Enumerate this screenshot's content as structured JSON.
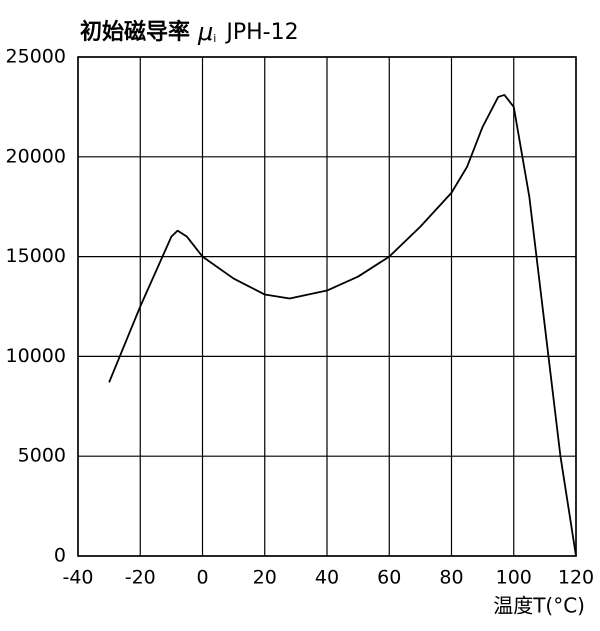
{
  "chart_data": {
    "type": "line",
    "title": "初始磁导率",
    "symbol": "μ",
    "symbol_subscript": "i",
    "subtitle": "JPH-12",
    "x_label": "温度T(°C)",
    "x": [
      -30,
      -20,
      -10,
      -8,
      -5,
      0,
      10,
      20,
      28,
      40,
      50,
      60,
      70,
      80,
      85,
      90,
      95,
      97,
      100,
      105,
      110,
      115,
      120
    ],
    "series": [
      {
        "color": "#000000",
        "values": [
          8700,
          12500,
          16000,
          16300,
          16000,
          15000,
          13900,
          13100,
          12900,
          13300,
          14000,
          15000,
          16500,
          18200,
          19500,
          21500,
          23000,
          23100,
          22500,
          18000,
          11500,
          5000,
          0
        ]
      }
    ],
    "xlim": [
      -40,
      120
    ],
    "xticks": [
      -40,
      -20,
      0,
      20,
      40,
      60,
      80,
      100,
      120
    ],
    "ylim": [
      0,
      25000
    ],
    "yticks": [
      0,
      5000,
      10000,
      15000,
      20000,
      25000
    ],
    "grid": true
  }
}
